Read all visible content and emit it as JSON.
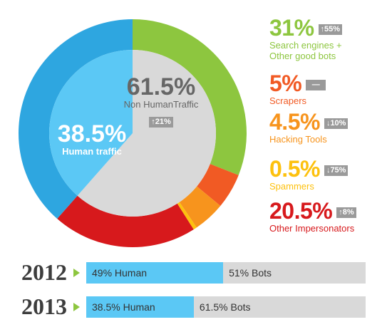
{
  "chart_data": {
    "type": "pie",
    "slices": [
      {
        "label": "Search engines + Other good bots",
        "value": 31,
        "color": "#8dc63f",
        "group": "bots"
      },
      {
        "label": "Scrapers",
        "value": 5,
        "color": "#f15a24",
        "group": "bots"
      },
      {
        "label": "Hacking Tools",
        "value": 4.5,
        "color": "#f7941d",
        "group": "bots"
      },
      {
        "label": "Spammers",
        "value": 0.5,
        "color": "#fdc10e",
        "group": "bots"
      },
      {
        "label": "Other Impersonators",
        "value": 20.5,
        "color": "#d7191c",
        "group": "bots"
      },
      {
        "label": "Human traffic",
        "value": 38.5,
        "color": "#2ea6e0",
        "group": "human"
      }
    ],
    "inner": {
      "human": {
        "pct": "38.5%",
        "label": "Human traffic",
        "value": 38.5,
        "color": "#5bc8f5"
      },
      "bots": {
        "pct": "61.5%",
        "label": "Non HumanTraffic",
        "change": "↑21%",
        "value": 61.5,
        "color": "#d9d9d9"
      }
    },
    "legend": [
      {
        "pct": "31%",
        "change": "↑55%",
        "label_lines": [
          "Search engines +",
          "Other good bots"
        ],
        "color": "#8dc63f"
      },
      {
        "pct": "5%",
        "change": "—",
        "label_lines": [
          "Scrapers"
        ],
        "color": "#f15a24"
      },
      {
        "pct": "4.5%",
        "change": "↓10%",
        "label_lines": [
          "Hacking Tools"
        ],
        "color": "#f7941d"
      },
      {
        "pct": "0.5%",
        "change": "↓75%",
        "label_lines": [
          "Spammers"
        ],
        "color": "#fdc10e"
      },
      {
        "pct": "20.5%",
        "change": "↑8%",
        "label_lines": [
          "Other Impersonators"
        ],
        "color": "#d7191c"
      }
    ],
    "comparison": [
      {
        "year": "2012",
        "human_value": 49,
        "human_label": "49% Human",
        "bots_label": "51% Bots"
      },
      {
        "year": "2013",
        "human_value": 38.5,
        "human_label": "38.5% Human",
        "bots_label": "61.5% Bots"
      }
    ]
  }
}
